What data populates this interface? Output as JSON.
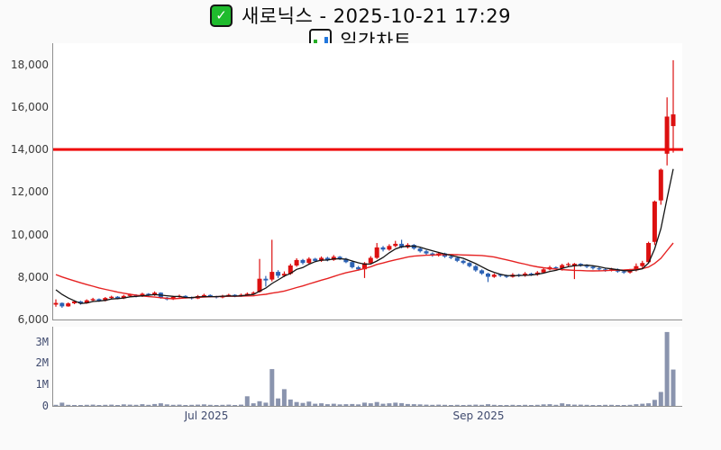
{
  "header": {
    "title": "새로닉스 - 2025-10-21 17:29",
    "subtitle": "일간차트",
    "check_glyph": "✓",
    "check_icon": "green-checkbox-emoji",
    "subtitle_icon": "bar-chart-emoji"
  },
  "chart_data": {
    "type": "candlestick",
    "symbol": "새로닉스",
    "timeframe": "daily (일간차트)",
    "as_of": "2025-10-21 17:29",
    "grid": false,
    "legend_position": "none",
    "price_axis": {
      "tick_values": [
        18000,
        16000,
        14000,
        12000,
        10000,
        8000,
        6000
      ],
      "tick_labels": [
        "18,000",
        "16,000",
        "14,000",
        "12,000",
        "10,000",
        "8,000",
        "6,000"
      ],
      "range": [
        6000,
        19000
      ]
    },
    "volume_axis": {
      "tick_values": [
        3,
        2,
        1,
        0
      ],
      "tick_labels": [
        "3M",
        "2M",
        "1M",
        "0"
      ],
      "range": [
        0,
        3.7
      ],
      "unit": "millions of shares"
    },
    "x_axis": {
      "labels": [
        {
          "text": "Jul 2025",
          "day_index": 24.5
        },
        {
          "text": "Sep 2025",
          "day_index": 68.6
        }
      ],
      "first_day": "late May 2025",
      "last_day": "2025-10-21",
      "num_days": 101
    },
    "reference_line": {
      "price": 14000,
      "color": "#ee0606",
      "thickness": 3
    },
    "colors": {
      "up": "#dc1010",
      "down": "#2c62b4",
      "volume_bar": "#8a94ae",
      "ma_short": "#141414",
      "ma_long": "#e62222",
      "axis_line": "#8f8f8f"
    },
    "series": {
      "candles_ohlc": [
        [
          6700,
          6950,
          6600,
          6780
        ],
        [
          6780,
          6800,
          6550,
          6620
        ],
        [
          6620,
          6800,
          6600,
          6760
        ],
        [
          6760,
          6900,
          6720,
          6850
        ],
        [
          6850,
          6880,
          6700,
          6760
        ],
        [
          6760,
          6950,
          6740,
          6900
        ],
        [
          6900,
          7020,
          6860,
          6960
        ],
        [
          6960,
          6990,
          6830,
          6880
        ],
        [
          6880,
          7060,
          6850,
          7010
        ],
        [
          7010,
          7120,
          6970,
          7070
        ],
        [
          7070,
          7100,
          6950,
          6990
        ],
        [
          6990,
          7160,
          6960,
          7110
        ],
        [
          7110,
          7220,
          7070,
          7160
        ],
        [
          7160,
          7190,
          7040,
          7090
        ],
        [
          7090,
          7260,
          7060,
          7210
        ],
        [
          7210,
          7240,
          7090,
          7140
        ],
        [
          7140,
          7320,
          7110,
          7260
        ],
        [
          7260,
          7280,
          6980,
          7030
        ],
        [
          7030,
          7060,
          6900,
          6950
        ],
        [
          6950,
          7110,
          6920,
          7060
        ],
        [
          7060,
          7170,
          7020,
          7110
        ],
        [
          7110,
          7140,
          6990,
          7040
        ],
        [
          7040,
          7080,
          6940,
          6990
        ],
        [
          6990,
          7150,
          6960,
          7100
        ],
        [
          7100,
          7210,
          7060,
          7150
        ],
        [
          7150,
          7180,
          7040,
          7090
        ],
        [
          7090,
          7120,
          6990,
          7040
        ],
        [
          7040,
          7160,
          7000,
          7110
        ],
        [
          7110,
          7210,
          7070,
          7160
        ],
        [
          7160,
          7190,
          7050,
          7100
        ],
        [
          7100,
          7220,
          7070,
          7160
        ],
        [
          7160,
          7270,
          7120,
          7210
        ],
        [
          7210,
          7320,
          7170,
          7260
        ],
        [
          7300,
          8850,
          7260,
          7920
        ],
        [
          7920,
          8050,
          7550,
          7840
        ],
        [
          7880,
          9750,
          7790,
          8240
        ],
        [
          8240,
          8320,
          7950,
          8060
        ],
        [
          8060,
          8260,
          8000,
          8150
        ],
        [
          8150,
          8620,
          8100,
          8540
        ],
        [
          8540,
          8880,
          8480,
          8800
        ],
        [
          8800,
          8850,
          8590,
          8660
        ],
        [
          8660,
          8930,
          8610,
          8860
        ],
        [
          8860,
          8900,
          8700,
          8760
        ],
        [
          8760,
          8970,
          8710,
          8900
        ],
        [
          8900,
          8950,
          8740,
          8800
        ],
        [
          8800,
          9030,
          8760,
          8950
        ],
        [
          8950,
          8990,
          8800,
          8860
        ],
        [
          8860,
          8900,
          8650,
          8700
        ],
        [
          8700,
          8740,
          8400,
          8460
        ],
        [
          8460,
          8520,
          8300,
          8360
        ],
        [
          8360,
          8700,
          7950,
          8650
        ],
        [
          8650,
          8980,
          8600,
          8900
        ],
        [
          8900,
          9600,
          8850,
          9390
        ],
        [
          9390,
          9460,
          9200,
          9290
        ],
        [
          9290,
          9540,
          9240,
          9460
        ],
        [
          9460,
          9700,
          9400,
          9560
        ],
        [
          9560,
          9750,
          9350,
          9400
        ],
        [
          9400,
          9590,
          9340,
          9510
        ],
        [
          9510,
          9550,
          9280,
          9340
        ],
        [
          9340,
          9390,
          9150,
          9210
        ],
        [
          9210,
          9270,
          9050,
          9110
        ],
        [
          9110,
          9160,
          8950,
          9010
        ],
        [
          9010,
          9180,
          8960,
          9110
        ],
        [
          9110,
          9140,
          8900,
          8960
        ],
        [
          8960,
          9010,
          8840,
          8900
        ],
        [
          8900,
          8930,
          8700,
          8760
        ],
        [
          8760,
          8810,
          8600,
          8660
        ],
        [
          8660,
          8700,
          8450,
          8510
        ],
        [
          8510,
          8560,
          8250,
          8310
        ],
        [
          8310,
          8360,
          8100,
          8160
        ],
        [
          8160,
          8200,
          7760,
          8010
        ],
        [
          8010,
          8170,
          7960,
          8110
        ],
        [
          8110,
          8150,
          8000,
          8060
        ],
        [
          8060,
          8110,
          7950,
          8010
        ],
        [
          8010,
          8180,
          7970,
          8110
        ],
        [
          8110,
          8150,
          8000,
          8060
        ],
        [
          8060,
          8230,
          8010,
          8160
        ],
        [
          8160,
          8200,
          8050,
          8110
        ],
        [
          8110,
          8280,
          8060,
          8210
        ],
        [
          8210,
          8420,
          8160,
          8360
        ],
        [
          8360,
          8530,
          8310,
          8460
        ],
        [
          8460,
          8500,
          8350,
          8410
        ],
        [
          8410,
          8620,
          8300,
          8560
        ],
        [
          8560,
          8680,
          8500,
          8610
        ],
        [
          8510,
          8660,
          7900,
          8620
        ],
        [
          8620,
          8650,
          8480,
          8530
        ],
        [
          8530,
          8600,
          8420,
          8480
        ],
        [
          8480,
          8510,
          8350,
          8410
        ],
        [
          8410,
          8460,
          8300,
          8360
        ],
        [
          8360,
          8410,
          8250,
          8310
        ],
        [
          8310,
          8430,
          8260,
          8360
        ],
        [
          8360,
          8400,
          8200,
          8260
        ],
        [
          8260,
          8310,
          8150,
          8210
        ],
        [
          8210,
          8380,
          8160,
          8310
        ],
        [
          8310,
          8640,
          8260,
          8510
        ],
        [
          8510,
          8760,
          8400,
          8660
        ],
        [
          8700,
          9660,
          8650,
          9600
        ],
        [
          9650,
          11600,
          9500,
          11550
        ],
        [
          11600,
          13100,
          11400,
          13050
        ],
        [
          13800,
          16450,
          13250,
          15550
        ],
        [
          15100,
          18200,
          13850,
          15650
        ]
      ],
      "volumes_millions": [
        0.05,
        0.15,
        0.05,
        0.04,
        0.03,
        0.05,
        0.06,
        0.04,
        0.05,
        0.06,
        0.04,
        0.07,
        0.06,
        0.05,
        0.08,
        0.05,
        0.09,
        0.12,
        0.07,
        0.05,
        0.06,
        0.04,
        0.05,
        0.06,
        0.07,
        0.05,
        0.04,
        0.05,
        0.06,
        0.04,
        0.06,
        0.45,
        0.12,
        0.22,
        0.15,
        1.72,
        0.35,
        0.78,
        0.3,
        0.18,
        0.14,
        0.2,
        0.1,
        0.12,
        0.08,
        0.1,
        0.07,
        0.08,
        0.09,
        0.07,
        0.15,
        0.12,
        0.18,
        0.1,
        0.12,
        0.15,
        0.13,
        0.09,
        0.08,
        0.07,
        0.06,
        0.05,
        0.06,
        0.05,
        0.04,
        0.05,
        0.04,
        0.05,
        0.06,
        0.05,
        0.08,
        0.05,
        0.04,
        0.04,
        0.05,
        0.04,
        0.05,
        0.04,
        0.05,
        0.07,
        0.08,
        0.05,
        0.12,
        0.08,
        0.06,
        0.06,
        0.05,
        0.04,
        0.04,
        0.05,
        0.05,
        0.04,
        0.04,
        0.05,
        0.08,
        0.1,
        0.12,
        0.28,
        0.65,
        3.45,
        1.7
      ],
      "ma_short": {
        "type": "sma",
        "window": 5,
        "color": "#141414"
      },
      "ma_long": {
        "type": "sma",
        "window": 20,
        "color": "#e62222"
      },
      "pre_period_closes": [
        8800,
        8750,
        8700,
        8650,
        8600,
        8550,
        8500,
        8450,
        8400,
        8350,
        8300,
        8200,
        8100,
        8000,
        7900,
        7800,
        7700,
        7600,
        7500,
        7400
      ]
    }
  }
}
